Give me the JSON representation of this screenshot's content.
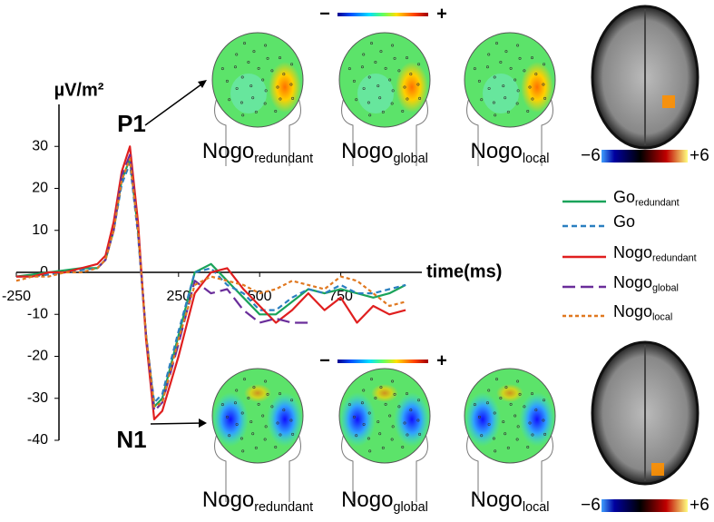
{
  "chart_data": {
    "type": "line",
    "y_label": "µV/m²",
    "x_label": "time(ms)",
    "annotations": [
      "P1",
      "N1"
    ],
    "x": [
      -250,
      -200,
      -150,
      -100,
      -50,
      0,
      25,
      50,
      75,
      100,
      125,
      150,
      175,
      200,
      250,
      300,
      350,
      400,
      450,
      500,
      550,
      600,
      650,
      700,
      750,
      800,
      850,
      900,
      950
    ],
    "xlim": [
      -250,
      1000
    ],
    "ylim": [
      -40,
      40
    ],
    "xticks": [
      -250,
      250,
      500,
      750
    ],
    "yticks": [
      -40,
      -30,
      -20,
      -10,
      0,
      10,
      20,
      30
    ],
    "series": [
      {
        "name": "Go",
        "subscript": "redundant",
        "color": "#1aa35a",
        "dash": "",
        "values": [
          -1,
          -0.5,
          0,
          0.5,
          1,
          1,
          3,
          10,
          22,
          27,
          10,
          -15,
          -32,
          -30,
          -15,
          0,
          2,
          -2,
          -6,
          -10,
          -10,
          -7,
          -4,
          -5,
          -4,
          -5,
          -6,
          -5,
          -3
        ]
      },
      {
        "name": "Go",
        "color": "#2a7fc0",
        "dash": "6,4",
        "values": [
          -1,
          -1,
          -0.5,
          0,
          0.5,
          1,
          3,
          10,
          21,
          26,
          9,
          -15,
          -31,
          -29,
          -14,
          0,
          1,
          -3,
          -5,
          -9,
          -9,
          -6,
          -4,
          -5,
          -3,
          -5,
          -5,
          -4,
          -3
        ]
      },
      {
        "name": "Nogo",
        "subscript": "redundant",
        "color": "#e01f1f",
        "dash": "",
        "values": [
          -1,
          -1,
          0,
          0,
          1,
          2,
          4,
          12,
          24,
          30,
          12,
          -16,
          -35,
          -33,
          -20,
          -5,
          0,
          1,
          -4,
          -8,
          -12,
          -9,
          -5,
          -9,
          -6,
          -12,
          -8,
          -10,
          -9
        ]
      },
      {
        "name": "Nogo",
        "subscript": "global",
        "color": "#6a2d9a",
        "dash": "14,6",
        "values": [
          null,
          null,
          null,
          null,
          null,
          1,
          3,
          10,
          23,
          28,
          10,
          -15,
          -33,
          -31,
          -17,
          -2,
          -5,
          -4,
          -9,
          -12,
          -11,
          -12,
          -12,
          null,
          null,
          null,
          null,
          null,
          null
        ]
      },
      {
        "name": "Nogo",
        "subscript": "local",
        "color": "#e07820",
        "dash": "4,3",
        "values": [
          -2,
          -1,
          -1,
          0,
          0,
          1,
          3,
          10,
          22,
          27,
          10,
          -15,
          -32,
          -31,
          -16,
          -3,
          -1,
          -2,
          -3,
          -5,
          -4,
          -2,
          -3,
          -4,
          -1,
          -2,
          -5,
          -8,
          -7
        ]
      }
    ]
  },
  "panels": [
    {
      "labels": [
        {
          "name": "Nogo",
          "subscript": "redundant"
        },
        {
          "name": "Nogo",
          "subscript": "global"
        },
        {
          "name": "Nogo",
          "subscript": "local"
        }
      ],
      "scale": [
        "−",
        "+"
      ],
      "brain_scale": [
        {
          "value": -6,
          "label": "−6"
        },
        {
          "value": 6,
          "label": "+6"
        }
      ]
    },
    {
      "labels": [
        {
          "name": "Nogo",
          "subscript": "redundant"
        },
        {
          "name": "Nogo",
          "subscript": "global"
        },
        {
          "name": "Nogo",
          "subscript": "local"
        }
      ],
      "scale": [
        "−",
        "+"
      ],
      "brain_scale": [
        {
          "value": -6,
          "label": "−6"
        },
        {
          "value": 6,
          "label": "+6"
        }
      ]
    }
  ]
}
